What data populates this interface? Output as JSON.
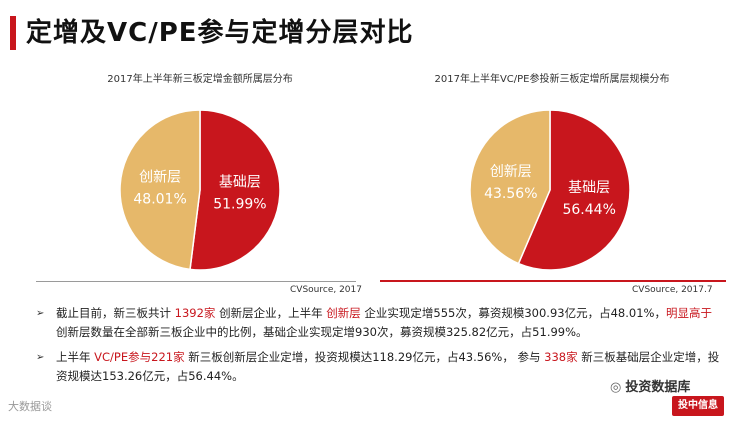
{
  "page": {
    "title": "定增及VC/PE参与定增分层对比"
  },
  "chart_data": [
    {
      "type": "pie",
      "title": "2017年上半年新三板定增金额所属层分布",
      "source": "CVSource, 2017",
      "slices": [
        {
          "label": "创新层",
          "value": 48.01,
          "display": "48.01%",
          "color": "#e6b86a"
        },
        {
          "label": "基础层",
          "value": 51.99,
          "display": "51.99%",
          "color": "#c8161d"
        }
      ]
    },
    {
      "type": "pie",
      "title": "2017年上半年VC/PE参投新三板定增所属层规模分布",
      "source": "CVSource, 2017.7",
      "slices": [
        {
          "label": "创新层",
          "value": 43.56,
          "display": "43.56%",
          "color": "#e6b86a"
        },
        {
          "label": "基础层",
          "value": 56.44,
          "display": "56.44%",
          "color": "#c8161d"
        }
      ]
    }
  ],
  "bullets": [
    {
      "segments": [
        {
          "text": "截止目前，新三板共计 ",
          "red": false
        },
        {
          "text": "1392家",
          "red": true
        },
        {
          "text": " 创新层企业，上半年 ",
          "red": false
        },
        {
          "text": "创新层",
          "red": true
        },
        {
          "text": " 企业实现定增555次，募资规模300.93亿元，占48.01%，",
          "red": false
        },
        {
          "text": "明显高于",
          "red": true
        },
        {
          "text": " 创新层数量在全部新三板企业中的比例，基础企业实现定增930次，募资规模325.82亿元，占51.99%。",
          "red": false
        }
      ]
    },
    {
      "segments": [
        {
          "text": "上半年 ",
          "red": false
        },
        {
          "text": "VC/PE参与221家",
          "red": true
        },
        {
          "text": " 新三板创新层企业定增，投资规模达118.29亿元，占43.56%， 参与 ",
          "red": false
        },
        {
          "text": "338家",
          "red": true
        },
        {
          "text": " 新三板基础层企业定增，投资规模达153.26亿元，占56.44%。",
          "red": false
        }
      ]
    }
  ],
  "footer": {
    "watermark": "大数据谈",
    "wechat_label": "投资数据库",
    "badge": "投中信息"
  },
  "colors": {
    "accent": "#c8161d",
    "gold": "#e6b86a"
  }
}
